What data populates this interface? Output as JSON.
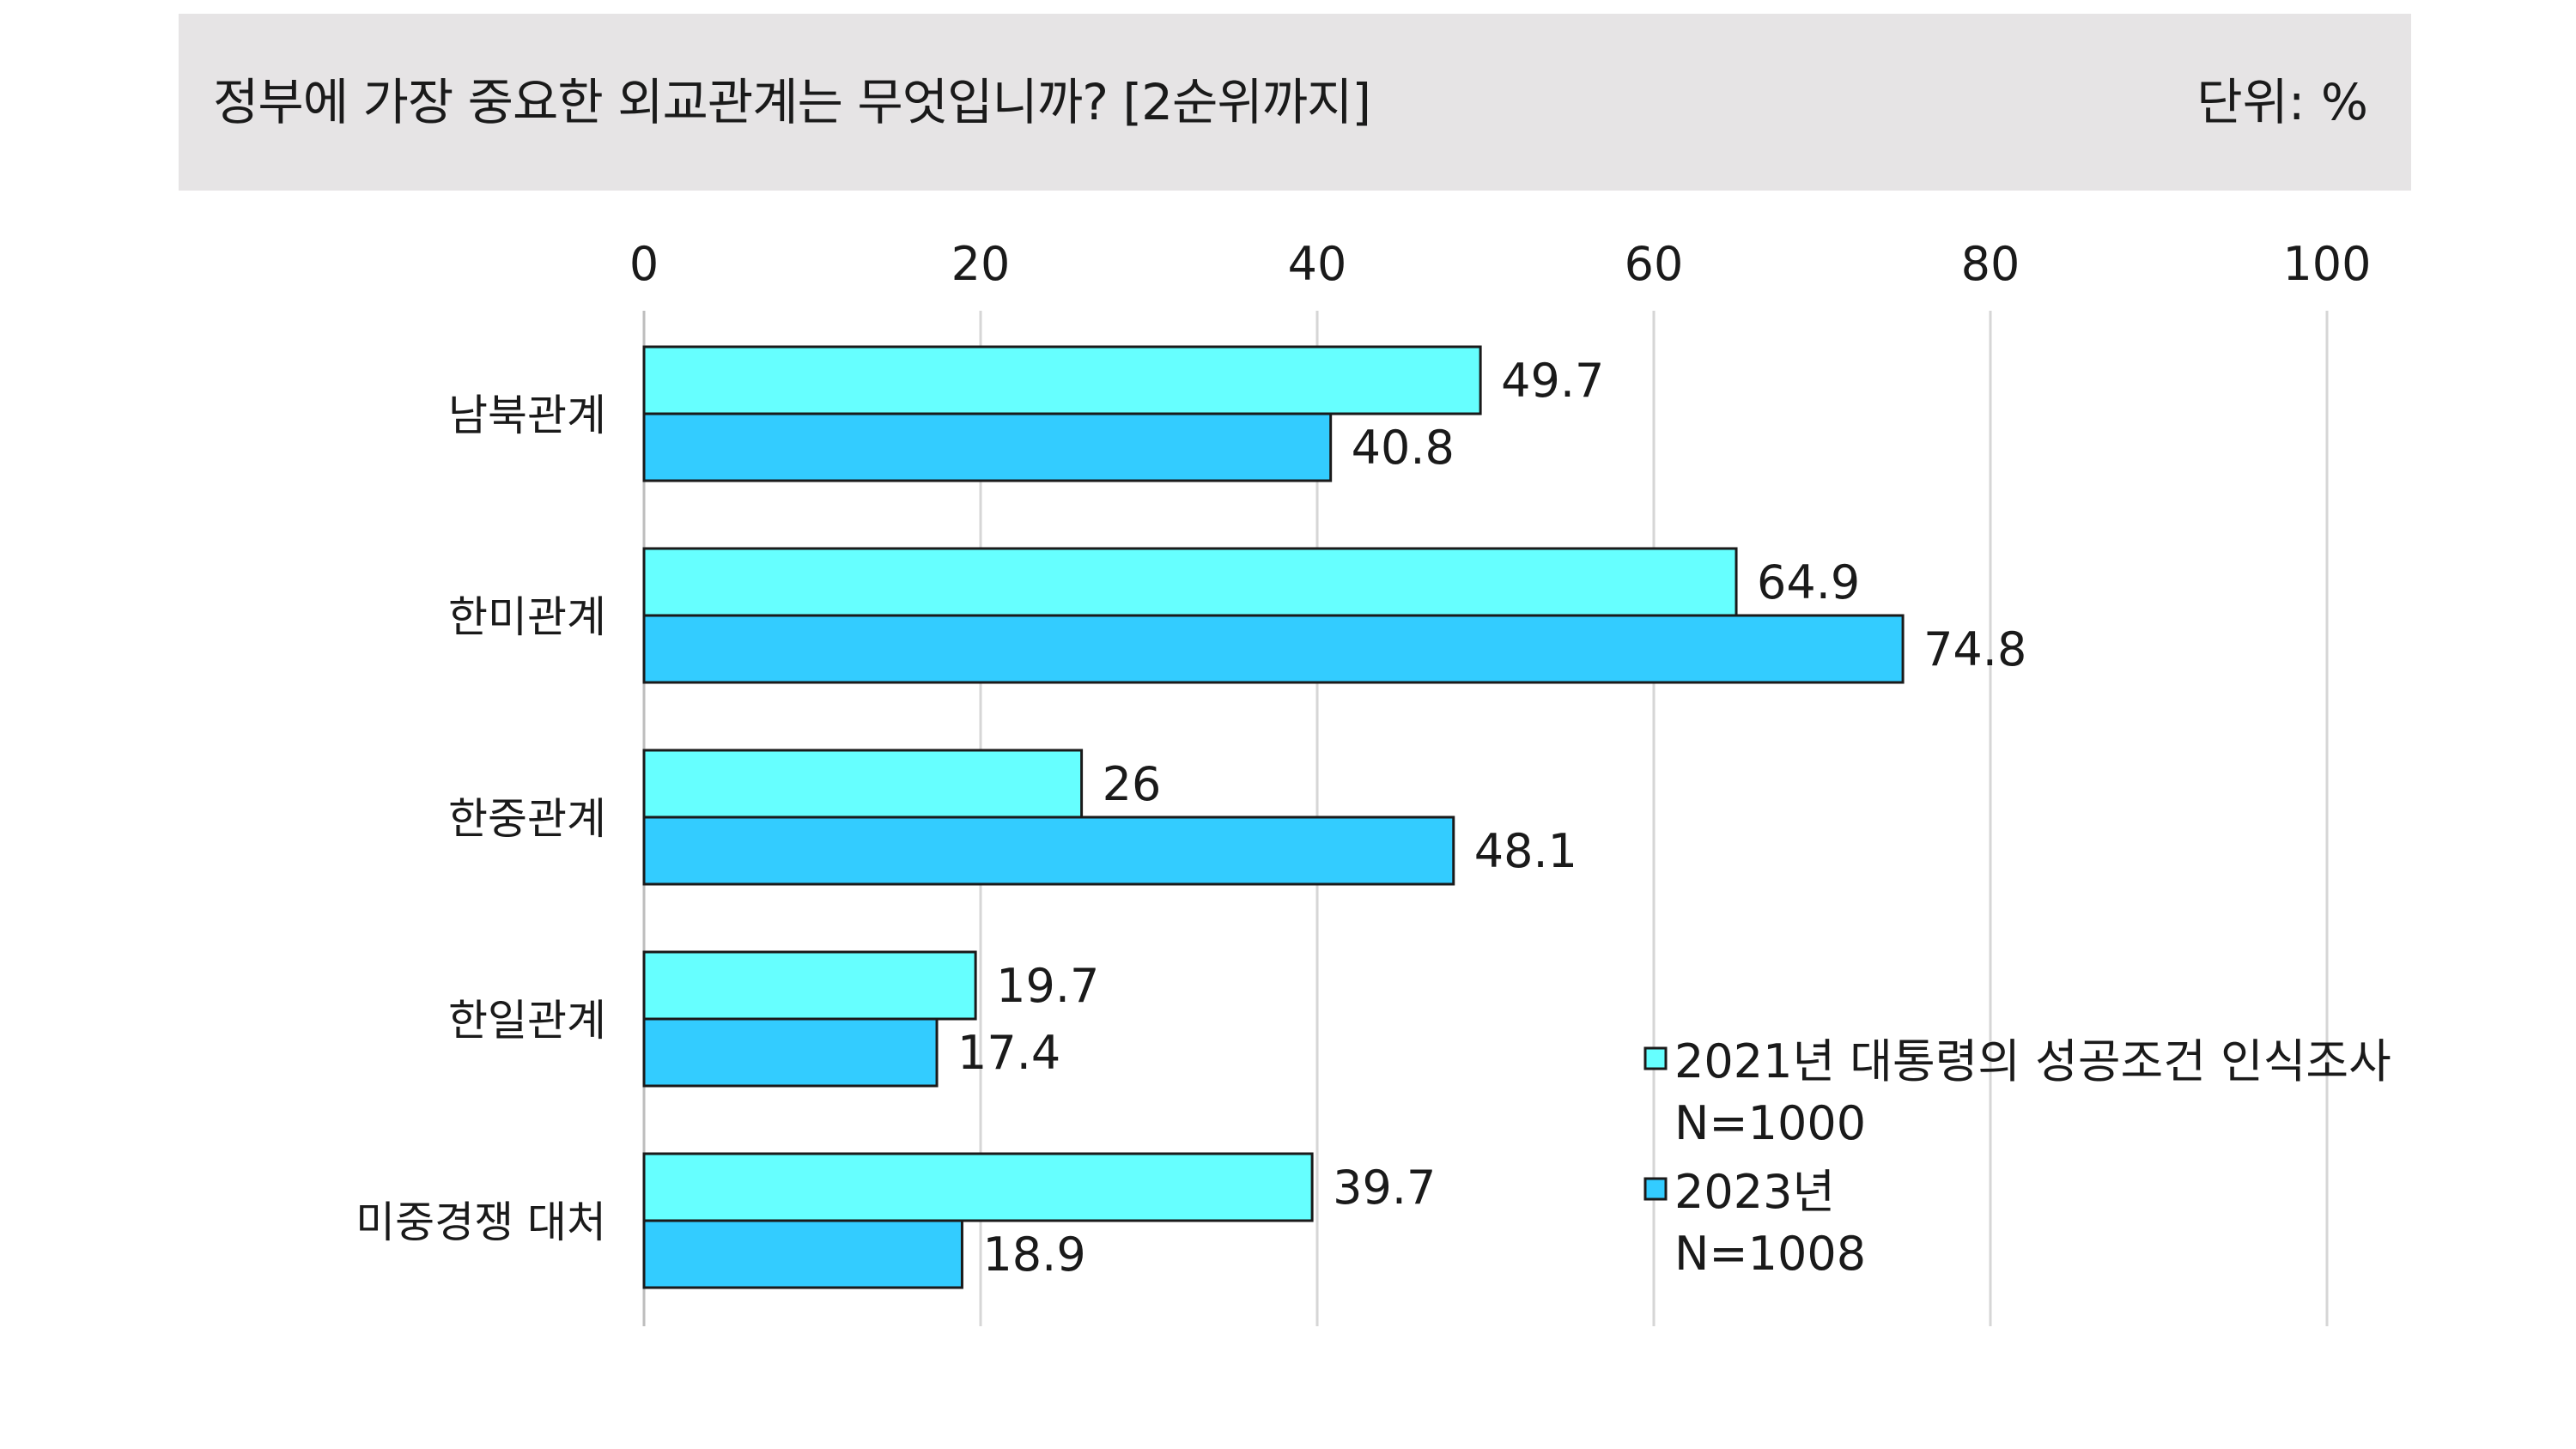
{
  "header": {
    "title": "정부에 가장 중요한 외교관계는 무엇입니까? [2순위까지]",
    "unit": "단위: %"
  },
  "chart_data": {
    "type": "bar",
    "orientation": "horizontal",
    "title": "정부에 가장 중요한 외교관계는 무엇입니까? [2순위까지]",
    "unit": "단위: %",
    "categories": [
      "남북관계",
      "한미관계",
      "한중관계",
      "한일관계",
      "미중경쟁 대처"
    ],
    "xlim": [
      0,
      100
    ],
    "ticks": [
      "0",
      "20",
      "40",
      "60",
      "80",
      "100"
    ],
    "grid": true,
    "legend_position": "bottom-right",
    "series": [
      {
        "name": "2021년 대통령의 성공조건 인식조사",
        "sample": "N=1000",
        "color": "#66ffff",
        "values": [
          49.7,
          64.9,
          26,
          19.7,
          39.7
        ],
        "labels": [
          "49.7",
          "64.9",
          "26",
          "19.7",
          "39.7"
        ]
      },
      {
        "name": "2023년",
        "sample": "N=1008",
        "color": "#33ccff",
        "values": [
          40.8,
          74.8,
          48.1,
          17.4,
          18.9
        ],
        "labels": [
          "40.8",
          "74.8",
          "48.1",
          "17.4",
          "18.9"
        ]
      }
    ]
  }
}
